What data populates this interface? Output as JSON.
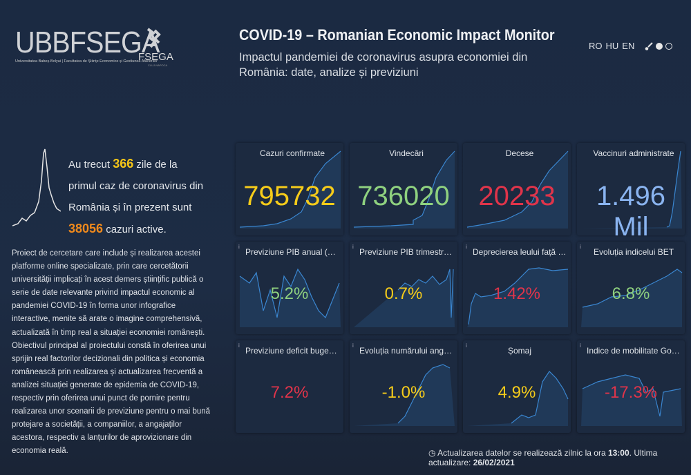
{
  "header": {
    "logo_text": "UBBFSEGA",
    "logo_sub": "Universitatea Babeș-Bolyai | Facultatea de Științe Economice și Gestiunea Afacerilor",
    "emblem_text": "FSEGA",
    "emblem_sub": "CLUJ-NAPOCA",
    "title": "COVID-19 – Romanian Economic Impact Monitor",
    "subtitle": "Impactul pandemiei de coronavirus asupra economiei din România: date, analize și previziuni",
    "languages": [
      "RO",
      "HU",
      "EN"
    ]
  },
  "summary": {
    "p1": "Au trecut ",
    "days": "366",
    "p2": " zile de la primul caz de coronavirus din România și în prezent sunt ",
    "active": "38056",
    "p3": " cazuri active."
  },
  "description": "Proiect de cercetare care include și realizarea acestei platforme online specializate, prin care cercetătorii universității implicați în acest demers științific publică o serie de date relevante privind impactul economic al pandemiei COVID-19 în forma unor infografice interactive, menite să arate o imagine comprehensivă, actualizată în timp real a situației economiei românești. Obiectivul principal al proiectului constă în oferirea unui sprijin real factorilor decizionali din politica și economia românească prin realizarea și actualizarea frecventă a analizei situației generate de epidemia de COVID-19, respectiv prin oferirea unui punct de pornire pentru realizarea unor scenarii de previziune pentru o mai bună protejare a societății, a companiilor, a angajaților acestora, respectiv a lanțurilor de aprovizionare din economia reală.",
  "cards": [
    {
      "label": "Cazuri confirmate",
      "value": "795732",
      "color": "#f6cc1a",
      "info": false
    },
    {
      "label": "Vindecări",
      "value": "736020",
      "color": "#8fd17f",
      "info": false
    },
    {
      "label": "Decese",
      "value": "20233",
      "color": "#e0344a",
      "info": false
    },
    {
      "label": "Vaccinuri administrate",
      "value": "1.496 Mil",
      "color": "#8ab4f0",
      "info": false
    },
    {
      "label": "Previziune PIB anual (2021)",
      "value": "5.2%",
      "color": "#8fd17f",
      "info": true
    },
    {
      "label": "Previziune PIB trimestrial (Q...",
      "value": "0.7%",
      "color": "#f6cc1a",
      "info": true
    },
    {
      "label": "Deprecierea leului față de e...",
      "value": "1.42%",
      "color": "#e0344a",
      "info": true
    },
    {
      "label": "Evoluția indicelui BET",
      "value": "6.8%",
      "color": "#8fd17f",
      "info": true
    },
    {
      "label": "Previziune deficit bugetar a...",
      "value": "7.2%",
      "color": "#e0344a",
      "info": true
    },
    {
      "label": "Evoluția numărului angajațil...",
      "value": "-1.0%",
      "color": "#f6cc1a",
      "info": true
    },
    {
      "label": "Șomaj",
      "value": "4.9%",
      "color": "#f6cc1a",
      "info": true
    },
    {
      "label": "Indice de mobilitate Google",
      "value": "-17.3%",
      "color": "#e0344a",
      "info": true
    }
  ],
  "footer": {
    "p1": "Actualizarea datelor se realizează zilnic la ora ",
    "time": "13:00",
    "p2": ". Ultima actualizare: ",
    "date": "26/02/2021"
  }
}
